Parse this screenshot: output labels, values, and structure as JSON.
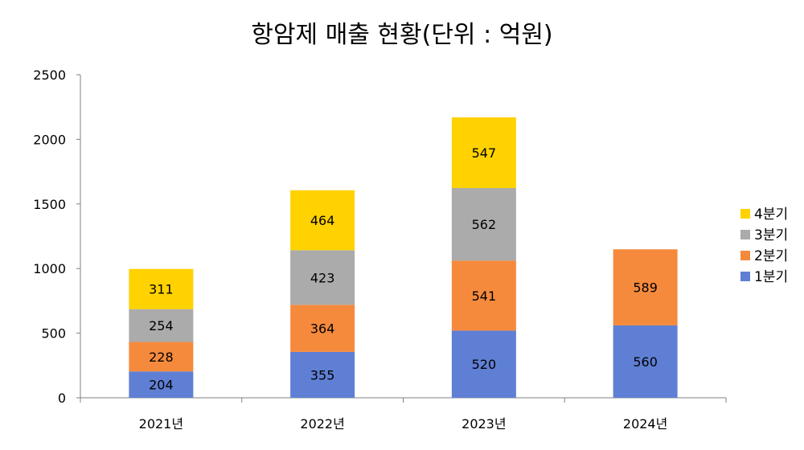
{
  "chart_data": {
    "type": "bar",
    "stacked": true,
    "title": "항암제 매출 현황(단위 : 억원)",
    "categories": [
      "2021년",
      "2022년",
      "2023년",
      "2024년"
    ],
    "series": [
      {
        "name": "1분기",
        "color": "#5F7FD4",
        "values": [
          204,
          355,
          520,
          560
        ]
      },
      {
        "name": "2분기",
        "color": "#F58A3D",
        "values": [
          228,
          364,
          541,
          589
        ]
      },
      {
        "name": "3분기",
        "color": "#ABABAB",
        "values": [
          254,
          423,
          562,
          null
        ]
      },
      {
        "name": "4분기",
        "color": "#FFD200",
        "values": [
          311,
          464,
          547,
          null
        ]
      }
    ],
    "ylim": [
      0,
      2500
    ],
    "yticks": [
      0,
      500,
      1000,
      1500,
      2000,
      2500
    ],
    "grid": false,
    "legend_position": "right"
  }
}
